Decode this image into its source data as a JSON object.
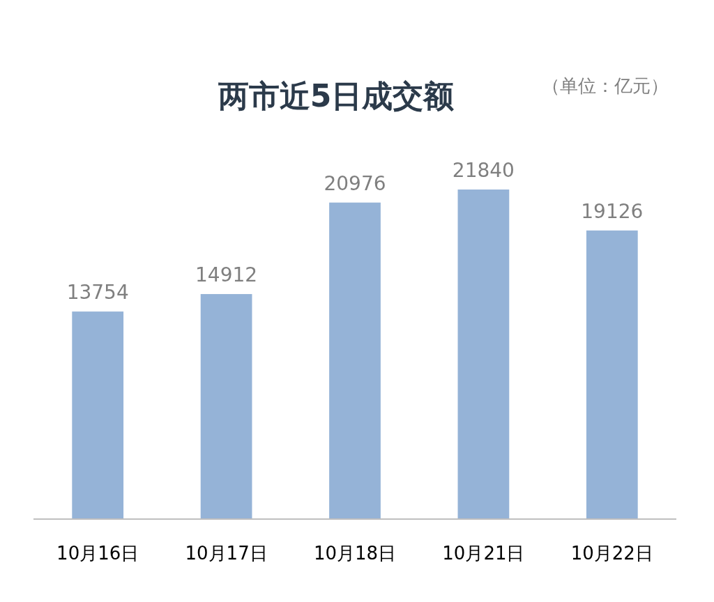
{
  "chart_data": {
    "type": "bar",
    "title": "两市近5日成交额",
    "subtitle": "（单位：亿元）",
    "categories": [
      "10月16日",
      "10月17日",
      "10月18日",
      "10月21日",
      "10月22日"
    ],
    "values": [
      13754,
      14912,
      20976,
      21840,
      19126
    ],
    "color": "#95b3d7",
    "data_labels": true
  }
}
